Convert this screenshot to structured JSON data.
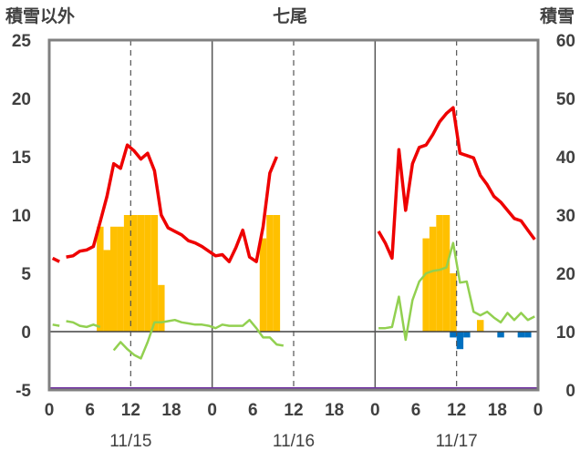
{
  "chart_data": {
    "type": "bar",
    "title": "七尾",
    "ylabel_left": "積雪以外",
    "ylabel_right": "積雪",
    "ylim_left": [
      -5,
      25
    ],
    "ylim_right": [
      0,
      60
    ],
    "left_ticks": [
      "25",
      "20",
      "15",
      "10",
      "5",
      "0",
      "-5"
    ],
    "right_ticks": [
      "60",
      "50",
      "40",
      "30",
      "20",
      "10",
      "0"
    ],
    "x_tick_labels": [
      "0",
      "6",
      "12",
      "18",
      "0",
      "6",
      "12",
      "18",
      "0",
      "6",
      "12",
      "18",
      "0"
    ],
    "date_labels": [
      "11/15",
      "11/16",
      "11/17"
    ],
    "grid": "dashed vertical lines at 12:00 each day, solid day separators, solid zero line",
    "colors": {
      "red_series": "#ee0000",
      "green_series": "#92d050",
      "orange_bars": "#ffc000",
      "blue_bars": "#0070c0",
      "purple_line": "#7030a0",
      "frame": "#808080"
    },
    "series": [
      {
        "color": "red",
        "axis": "left",
        "type": "line",
        "points": [
          [
            0,
            6.3
          ],
          [
            1,
            6.0
          ],
          null,
          [
            2,
            6.4
          ],
          [
            3,
            6.5
          ],
          [
            4,
            6.9
          ],
          [
            5,
            7.0
          ],
          [
            6,
            7.3
          ],
          [
            7,
            9.4
          ],
          [
            8,
            11.6
          ],
          [
            9,
            14.4
          ],
          [
            10,
            14.0
          ],
          [
            11,
            16.0
          ],
          [
            12,
            15.5
          ],
          [
            13,
            14.8
          ],
          [
            14,
            15.3
          ],
          [
            15,
            13.8
          ],
          [
            16,
            10.0
          ],
          [
            17,
            8.9
          ],
          [
            18,
            8.6
          ],
          [
            19,
            8.3
          ],
          [
            20,
            7.8
          ],
          [
            21,
            7.6
          ],
          [
            22,
            7.3
          ],
          [
            23,
            6.9
          ],
          [
            24,
            6.5
          ],
          [
            25,
            6.6
          ],
          [
            26,
            6.0
          ],
          [
            27,
            7.2
          ],
          [
            28,
            8.7
          ],
          [
            29,
            6.4
          ],
          [
            30,
            6.0
          ],
          [
            31,
            9.0
          ],
          [
            32,
            13.6
          ],
          [
            33,
            15.0
          ],
          null,
          [
            48,
            8.6
          ],
          [
            49,
            7.6
          ],
          [
            50,
            6.3
          ],
          [
            51,
            15.6
          ],
          [
            52,
            10.4
          ],
          [
            53,
            14.4
          ],
          [
            54,
            15.8
          ],
          [
            55,
            16.0
          ],
          [
            56,
            16.9
          ],
          [
            57,
            18.0
          ],
          [
            58,
            18.7
          ],
          [
            59,
            19.2
          ],
          [
            60,
            15.3
          ],
          [
            61,
            15.1
          ],
          [
            62,
            14.9
          ],
          [
            63,
            13.4
          ],
          [
            64,
            12.6
          ],
          [
            65,
            11.6
          ],
          [
            66,
            11.1
          ],
          [
            67,
            10.4
          ],
          [
            68,
            9.7
          ],
          [
            69,
            9.5
          ],
          [
            70,
            8.7
          ],
          [
            71,
            7.9
          ]
        ]
      },
      {
        "color": "green",
        "axis": "left",
        "type": "line",
        "points": [
          [
            0,
            0.6
          ],
          [
            1,
            0.5
          ],
          null,
          [
            2,
            0.9
          ],
          [
            3,
            0.8
          ],
          [
            4,
            0.5
          ],
          [
            5,
            0.4
          ],
          [
            6,
            0.6
          ],
          [
            7,
            0.4
          ],
          null,
          [
            9,
            -1.6
          ],
          [
            10,
            -0.9
          ],
          [
            11,
            -1.5
          ],
          [
            12,
            -2.0
          ],
          [
            13,
            -2.3
          ],
          [
            14,
            -0.9
          ],
          [
            15,
            0.8
          ],
          [
            16,
            0.8
          ],
          [
            17,
            0.9
          ],
          [
            18,
            1.0
          ],
          [
            19,
            0.8
          ],
          [
            20,
            0.7
          ],
          [
            21,
            0.6
          ],
          [
            22,
            0.6
          ],
          [
            23,
            0.5
          ],
          [
            24,
            0.3
          ],
          [
            25,
            0.6
          ],
          [
            26,
            0.5
          ],
          [
            27,
            0.5
          ],
          [
            28,
            0.5
          ],
          [
            29,
            1.0
          ],
          [
            30,
            0.3
          ],
          [
            31,
            -0.5
          ],
          [
            32,
            -0.5
          ],
          [
            33,
            -1.1
          ],
          [
            34,
            -1.2
          ],
          null,
          [
            48,
            0.3
          ],
          [
            49,
            0.3
          ],
          [
            50,
            0.4
          ],
          [
            51,
            3.0
          ],
          [
            52,
            -0.7
          ],
          [
            53,
            2.7
          ],
          [
            54,
            4.3
          ],
          [
            55,
            5.0
          ],
          [
            56,
            5.2
          ],
          [
            57,
            5.3
          ],
          [
            58,
            5.5
          ],
          [
            59,
            7.6
          ],
          [
            60,
            4.2
          ],
          [
            61,
            4.3
          ],
          [
            62,
            1.7
          ],
          [
            63,
            1.4
          ],
          [
            64,
            1.7
          ],
          [
            65,
            1.2
          ],
          [
            66,
            0.8
          ],
          [
            67,
            1.6
          ],
          [
            68,
            1.0
          ],
          [
            69,
            1.6
          ],
          [
            70,
            1.0
          ],
          [
            71,
            1.3
          ]
        ]
      }
    ],
    "bars_orange": {
      "axis": "left",
      "x": [
        7,
        8,
        9,
        10,
        11,
        12,
        13,
        14,
        15,
        16,
        31,
        32,
        33,
        55,
        56,
        57,
        58,
        59,
        63
      ],
      "values": [
        9,
        7,
        9,
        9,
        10,
        10,
        10,
        10,
        10,
        4,
        8,
        10,
        10,
        8,
        9,
        10,
        10,
        5,
        1
      ]
    },
    "bars_blue": {
      "axis": "left",
      "x": [
        59,
        60,
        61,
        66,
        69,
        70
      ],
      "values": [
        -0.5,
        -1.5,
        -0.5,
        -0.5,
        -0.5,
        -0.5
      ]
    },
    "line_purple": {
      "axis": "left",
      "y": -5
    }
  }
}
